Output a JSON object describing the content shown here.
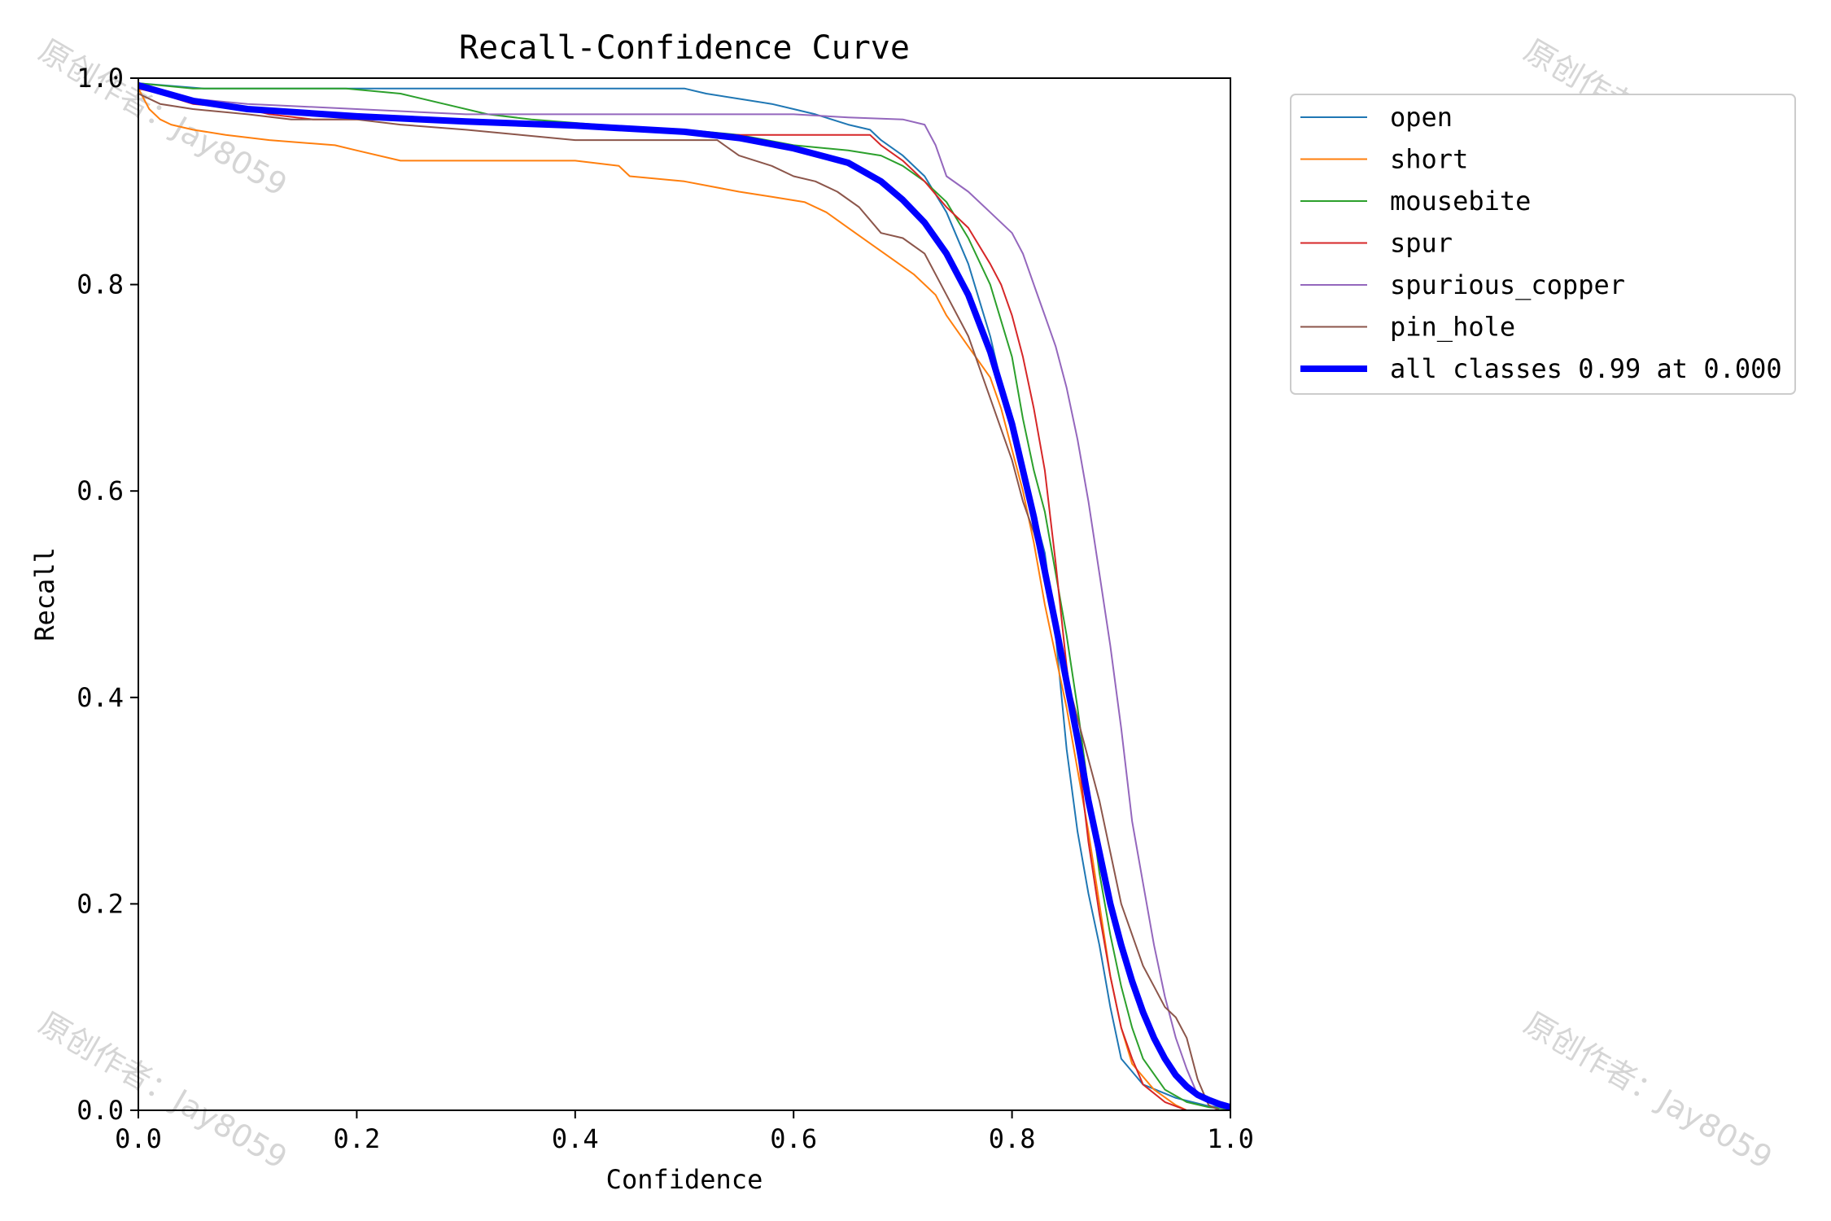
{
  "watermark": "原创作者：Jay8059",
  "chart_data": {
    "type": "line",
    "title": "Recall-Confidence Curve",
    "xlabel": "Confidence",
    "ylabel": "Recall",
    "xlim": [
      0,
      1
    ],
    "ylim": [
      0,
      1
    ],
    "xticks": [
      "0.0",
      "0.2",
      "0.4",
      "0.6",
      "0.8",
      "1.0"
    ],
    "yticks": [
      "0.0",
      "0.2",
      "0.4",
      "0.6",
      "0.8",
      "1.0"
    ],
    "grid": false,
    "legend_position": "outside right, top",
    "series": [
      {
        "name": "open",
        "color": "#1f77b4",
        "width": 1,
        "points": [
          [
            0,
            0.995
          ],
          [
            0.06,
            0.99
          ],
          [
            0.2,
            0.99
          ],
          [
            0.3,
            0.99
          ],
          [
            0.5,
            0.99
          ],
          [
            0.52,
            0.985
          ],
          [
            0.55,
            0.98
          ],
          [
            0.58,
            0.975
          ],
          [
            0.6,
            0.97
          ],
          [
            0.62,
            0.965
          ],
          [
            0.65,
            0.955
          ],
          [
            0.67,
            0.95
          ],
          [
            0.68,
            0.94
          ],
          [
            0.7,
            0.925
          ],
          [
            0.72,
            0.905
          ],
          [
            0.74,
            0.87
          ],
          [
            0.76,
            0.82
          ],
          [
            0.78,
            0.75
          ],
          [
            0.8,
            0.66
          ],
          [
            0.82,
            0.58
          ],
          [
            0.83,
            0.54
          ],
          [
            0.84,
            0.46
          ],
          [
            0.85,
            0.35
          ],
          [
            0.86,
            0.27
          ],
          [
            0.87,
            0.21
          ],
          [
            0.88,
            0.16
          ],
          [
            0.89,
            0.1
          ],
          [
            0.9,
            0.05
          ],
          [
            0.92,
            0.025
          ],
          [
            0.95,
            0.012
          ],
          [
            0.98,
            0.004
          ],
          [
            1,
            0.002
          ]
        ]
      },
      {
        "name": "short",
        "color": "#ff7f0e",
        "width": 1,
        "points": [
          [
            0,
            0.99
          ],
          [
            0.01,
            0.97
          ],
          [
            0.02,
            0.96
          ],
          [
            0.03,
            0.955
          ],
          [
            0.05,
            0.95
          ],
          [
            0.08,
            0.945
          ],
          [
            0.12,
            0.94
          ],
          [
            0.18,
            0.935
          ],
          [
            0.2,
            0.93
          ],
          [
            0.24,
            0.92
          ],
          [
            0.3,
            0.92
          ],
          [
            0.4,
            0.92
          ],
          [
            0.44,
            0.915
          ],
          [
            0.45,
            0.905
          ],
          [
            0.5,
            0.9
          ],
          [
            0.55,
            0.89
          ],
          [
            0.58,
            0.885
          ],
          [
            0.61,
            0.88
          ],
          [
            0.63,
            0.87
          ],
          [
            0.65,
            0.855
          ],
          [
            0.67,
            0.84
          ],
          [
            0.69,
            0.825
          ],
          [
            0.71,
            0.81
          ],
          [
            0.73,
            0.79
          ],
          [
            0.74,
            0.77
          ],
          [
            0.76,
            0.74
          ],
          [
            0.78,
            0.71
          ],
          [
            0.79,
            0.68
          ],
          [
            0.8,
            0.64
          ],
          [
            0.81,
            0.6
          ],
          [
            0.82,
            0.55
          ],
          [
            0.83,
            0.49
          ],
          [
            0.84,
            0.44
          ],
          [
            0.85,
            0.39
          ],
          [
            0.86,
            0.33
          ],
          [
            0.87,
            0.27
          ],
          [
            0.88,
            0.2
          ],
          [
            0.89,
            0.13
          ],
          [
            0.9,
            0.08
          ],
          [
            0.91,
            0.045
          ],
          [
            0.93,
            0.02
          ],
          [
            0.95,
            0.005
          ],
          [
            0.96,
            0
          ]
        ]
      },
      {
        "name": "mousebite",
        "color": "#2ca02c",
        "width": 1,
        "points": [
          [
            0,
            0.995
          ],
          [
            0.05,
            0.99
          ],
          [
            0.1,
            0.99
          ],
          [
            0.19,
            0.99
          ],
          [
            0.24,
            0.985
          ],
          [
            0.28,
            0.975
          ],
          [
            0.32,
            0.965
          ],
          [
            0.36,
            0.96
          ],
          [
            0.42,
            0.955
          ],
          [
            0.5,
            0.95
          ],
          [
            0.55,
            0.945
          ],
          [
            0.6,
            0.935
          ],
          [
            0.65,
            0.93
          ],
          [
            0.68,
            0.925
          ],
          [
            0.7,
            0.915
          ],
          [
            0.72,
            0.9
          ],
          [
            0.74,
            0.88
          ],
          [
            0.76,
            0.845
          ],
          [
            0.78,
            0.8
          ],
          [
            0.8,
            0.73
          ],
          [
            0.81,
            0.67
          ],
          [
            0.82,
            0.62
          ],
          [
            0.83,
            0.58
          ],
          [
            0.84,
            0.52
          ],
          [
            0.85,
            0.46
          ],
          [
            0.86,
            0.39
          ],
          [
            0.87,
            0.31
          ],
          [
            0.88,
            0.23
          ],
          [
            0.89,
            0.17
          ],
          [
            0.9,
            0.12
          ],
          [
            0.91,
            0.08
          ],
          [
            0.92,
            0.05
          ],
          [
            0.94,
            0.02
          ],
          [
            0.96,
            0.008
          ],
          [
            0.98,
            0.003
          ],
          [
            1,
            0.001
          ]
        ]
      },
      {
        "name": "spur",
        "color": "#d62728",
        "width": 1,
        "points": [
          [
            0,
            0.99
          ],
          [
            0.02,
            0.985
          ],
          [
            0.05,
            0.975
          ],
          [
            0.1,
            0.97
          ],
          [
            0.12,
            0.965
          ],
          [
            0.16,
            0.96
          ],
          [
            0.3,
            0.96
          ],
          [
            0.4,
            0.955
          ],
          [
            0.5,
            0.95
          ],
          [
            0.54,
            0.945
          ],
          [
            0.58,
            0.945
          ],
          [
            0.6,
            0.945
          ],
          [
            0.64,
            0.945
          ],
          [
            0.67,
            0.945
          ],
          [
            0.68,
            0.935
          ],
          [
            0.7,
            0.92
          ],
          [
            0.72,
            0.9
          ],
          [
            0.74,
            0.875
          ],
          [
            0.76,
            0.855
          ],
          [
            0.78,
            0.82
          ],
          [
            0.79,
            0.8
          ],
          [
            0.8,
            0.77
          ],
          [
            0.81,
            0.73
          ],
          [
            0.82,
            0.68
          ],
          [
            0.83,
            0.62
          ],
          [
            0.84,
            0.53
          ],
          [
            0.85,
            0.43
          ],
          [
            0.86,
            0.35
          ],
          [
            0.87,
            0.26
          ],
          [
            0.88,
            0.19
          ],
          [
            0.89,
            0.13
          ],
          [
            0.9,
            0.08
          ],
          [
            0.91,
            0.05
          ],
          [
            0.92,
            0.025
          ],
          [
            0.94,
            0.008
          ],
          [
            0.96,
            0
          ]
        ]
      },
      {
        "name": "spurious_copper",
        "color": "#9467bd",
        "width": 1,
        "points": [
          [
            0,
            0.995
          ],
          [
            0.05,
            0.98
          ],
          [
            0.1,
            0.975
          ],
          [
            0.2,
            0.97
          ],
          [
            0.3,
            0.965
          ],
          [
            0.4,
            0.965
          ],
          [
            0.55,
            0.965
          ],
          [
            0.6,
            0.965
          ],
          [
            0.65,
            0.962
          ],
          [
            0.7,
            0.96
          ],
          [
            0.72,
            0.955
          ],
          [
            0.73,
            0.935
          ],
          [
            0.74,
            0.905
          ],
          [
            0.76,
            0.89
          ],
          [
            0.78,
            0.87
          ],
          [
            0.8,
            0.85
          ],
          [
            0.81,
            0.83
          ],
          [
            0.82,
            0.8
          ],
          [
            0.83,
            0.77
          ],
          [
            0.84,
            0.74
          ],
          [
            0.85,
            0.7
          ],
          [
            0.86,
            0.65
          ],
          [
            0.87,
            0.59
          ],
          [
            0.88,
            0.52
          ],
          [
            0.89,
            0.45
          ],
          [
            0.9,
            0.37
          ],
          [
            0.91,
            0.28
          ],
          [
            0.92,
            0.22
          ],
          [
            0.93,
            0.16
          ],
          [
            0.94,
            0.11
          ],
          [
            0.95,
            0.07
          ],
          [
            0.96,
            0.04
          ],
          [
            0.97,
            0.015
          ],
          [
            0.99,
            0.003
          ],
          [
            1,
            0.001
          ]
        ]
      },
      {
        "name": "pin_hole",
        "color": "#8c564b",
        "width": 1,
        "points": [
          [
            0,
            0.985
          ],
          [
            0.02,
            0.975
          ],
          [
            0.05,
            0.97
          ],
          [
            0.1,
            0.965
          ],
          [
            0.14,
            0.96
          ],
          [
            0.2,
            0.96
          ],
          [
            0.24,
            0.955
          ],
          [
            0.3,
            0.95
          ],
          [
            0.35,
            0.945
          ],
          [
            0.4,
            0.94
          ],
          [
            0.48,
            0.94
          ],
          [
            0.53,
            0.94
          ],
          [
            0.55,
            0.925
          ],
          [
            0.58,
            0.915
          ],
          [
            0.6,
            0.905
          ],
          [
            0.62,
            0.9
          ],
          [
            0.64,
            0.89
          ],
          [
            0.66,
            0.875
          ],
          [
            0.68,
            0.85
          ],
          [
            0.7,
            0.845
          ],
          [
            0.72,
            0.83
          ],
          [
            0.74,
            0.79
          ],
          [
            0.76,
            0.75
          ],
          [
            0.78,
            0.69
          ],
          [
            0.8,
            0.63
          ],
          [
            0.81,
            0.59
          ],
          [
            0.82,
            0.56
          ],
          [
            0.83,
            0.52
          ],
          [
            0.84,
            0.47
          ],
          [
            0.85,
            0.42
          ],
          [
            0.86,
            0.38
          ],
          [
            0.87,
            0.34
          ],
          [
            0.88,
            0.3
          ],
          [
            0.89,
            0.25
          ],
          [
            0.9,
            0.2
          ],
          [
            0.91,
            0.17
          ],
          [
            0.92,
            0.14
          ],
          [
            0.93,
            0.12
          ],
          [
            0.94,
            0.1
          ],
          [
            0.95,
            0.09
          ],
          [
            0.96,
            0.07
          ],
          [
            0.97,
            0.03
          ],
          [
            0.98,
            0.005
          ],
          [
            0.99,
            0
          ]
        ]
      },
      {
        "name": "all classes 0.99 at 0.000",
        "color": "#0000ff",
        "width": 4,
        "points": [
          [
            0,
            0.993
          ],
          [
            0.02,
            0.987
          ],
          [
            0.05,
            0.978
          ],
          [
            0.1,
            0.97
          ],
          [
            0.2,
            0.963
          ],
          [
            0.3,
            0.958
          ],
          [
            0.4,
            0.954
          ],
          [
            0.5,
            0.948
          ],
          [
            0.55,
            0.942
          ],
          [
            0.6,
            0.932
          ],
          [
            0.65,
            0.918
          ],
          [
            0.68,
            0.9
          ],
          [
            0.7,
            0.882
          ],
          [
            0.72,
            0.86
          ],
          [
            0.74,
            0.83
          ],
          [
            0.76,
            0.79
          ],
          [
            0.78,
            0.735
          ],
          [
            0.8,
            0.665
          ],
          [
            0.82,
            0.575
          ],
          [
            0.84,
            0.47
          ],
          [
            0.86,
            0.36
          ],
          [
            0.87,
            0.3
          ],
          [
            0.88,
            0.25
          ],
          [
            0.89,
            0.2
          ],
          [
            0.9,
            0.16
          ],
          [
            0.91,
            0.125
          ],
          [
            0.92,
            0.095
          ],
          [
            0.93,
            0.07
          ],
          [
            0.94,
            0.05
          ],
          [
            0.95,
            0.034
          ],
          [
            0.96,
            0.023
          ],
          [
            0.97,
            0.015
          ],
          [
            0.98,
            0.01
          ],
          [
            0.99,
            0.006
          ],
          [
            1,
            0.003
          ]
        ]
      }
    ]
  }
}
